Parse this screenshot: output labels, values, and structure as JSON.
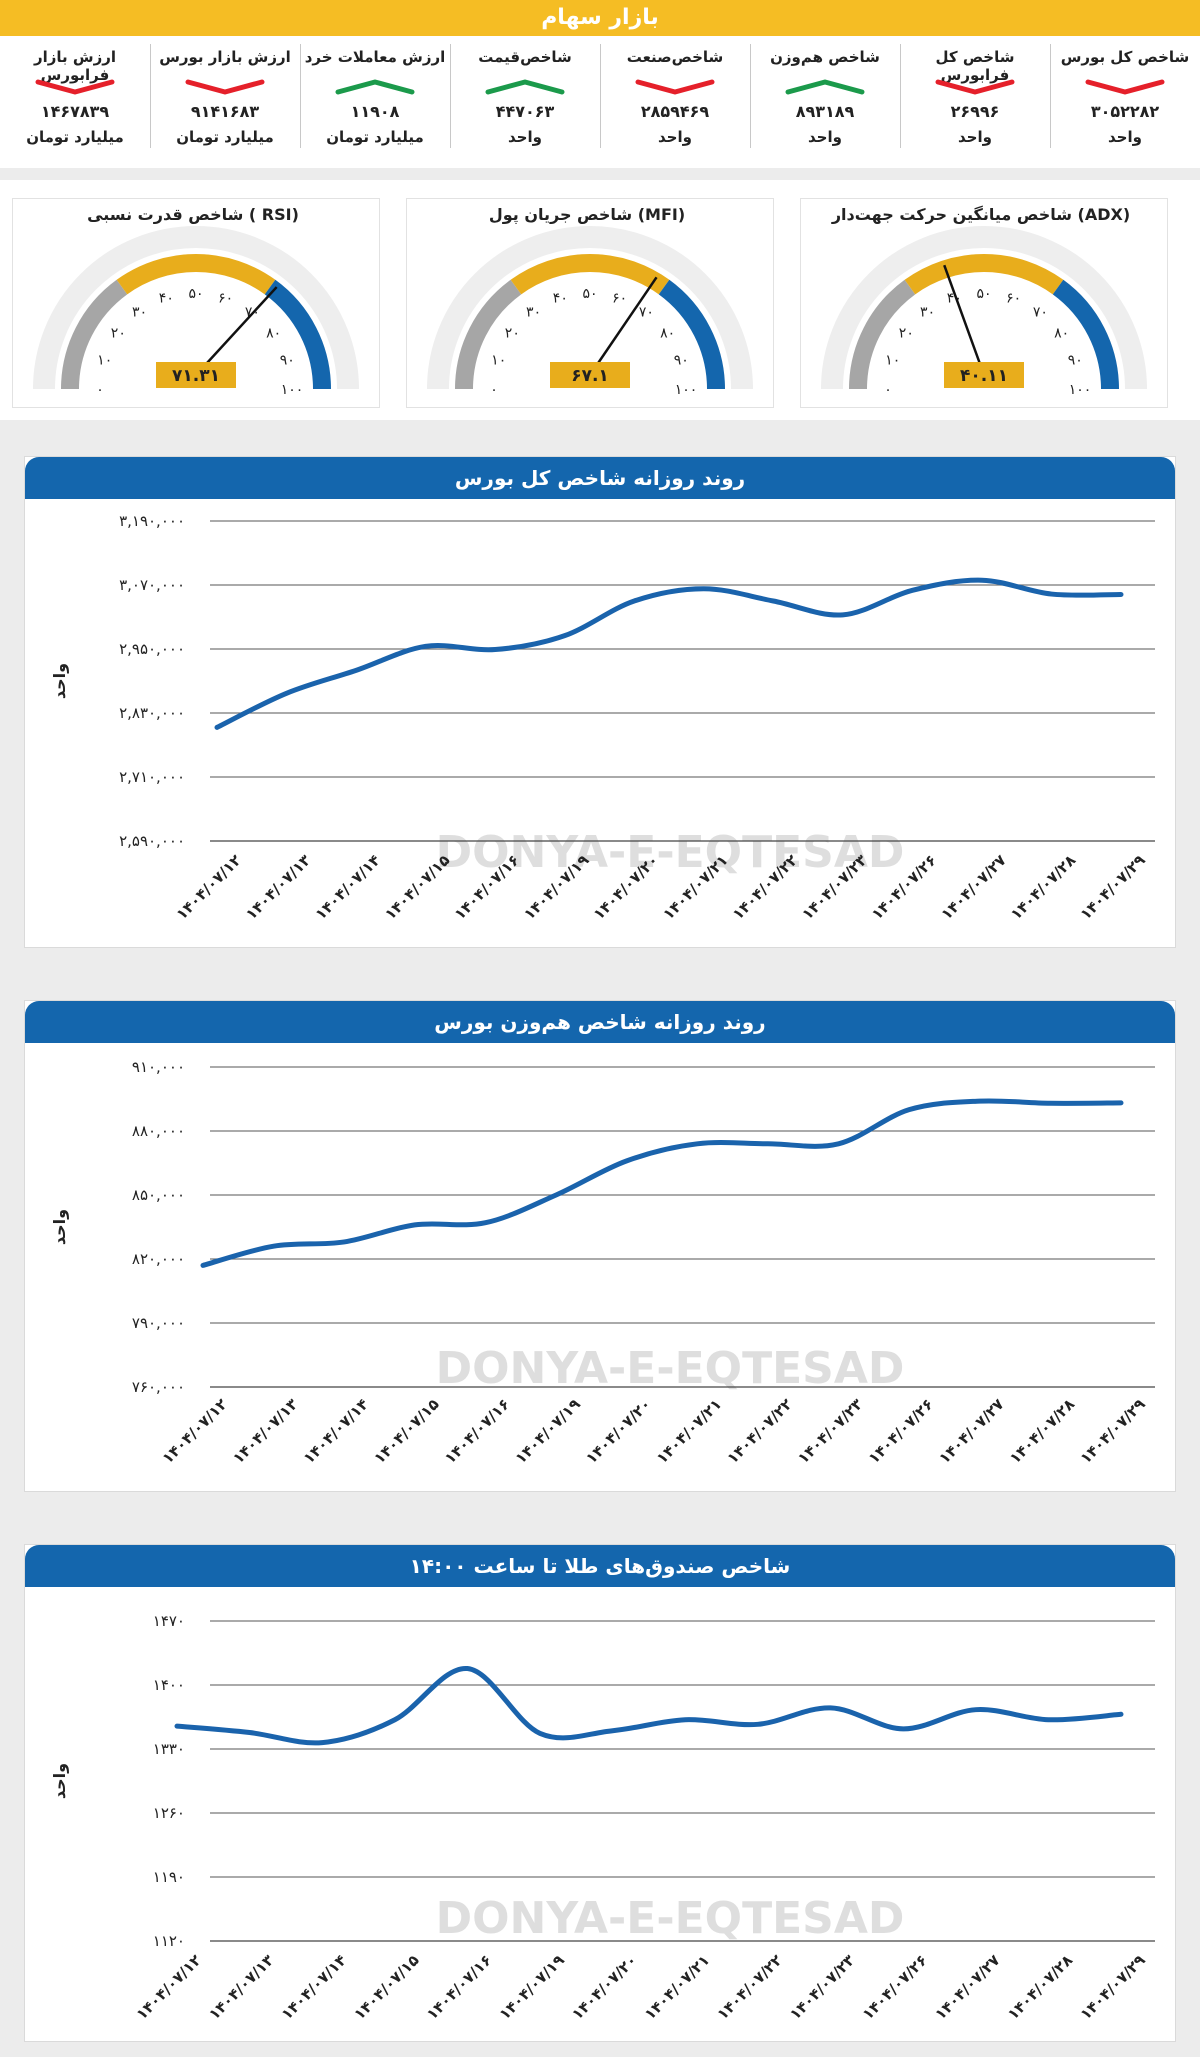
{
  "header": {
    "title": "بازار سهام"
  },
  "indicators": [
    {
      "title": "شاخص کل بورس",
      "value": "۳۰۵۲۲۸۲",
      "unit": "واحد",
      "trend": "down"
    },
    {
      "title": "شاخص کل فرابورس",
      "value": "۲۶۹۹۶",
      "unit": "واحد",
      "trend": "down"
    },
    {
      "title": "شاخص هم‌وزن",
      "value": "۸۹۳۱۸۹",
      "unit": "واحد",
      "trend": "up"
    },
    {
      "title": "شاخص‌صنعت",
      "value": "۲۸۵۹۴۶۹",
      "unit": "واحد",
      "trend": "down"
    },
    {
      "title": "شاخص‌قیمت",
      "value": "۴۴۷۰۶۳",
      "unit": "واحد",
      "trend": "up"
    },
    {
      "title": "ارزش معاملات خرد",
      "value": "۱۱۹۰۸",
      "unit": "میلیارد تومان",
      "trend": "up"
    },
    {
      "title": "ارزش بازار بورس",
      "value": "۹۱۴۱۶۸۳",
      "unit": "میلیارد تومان",
      "trend": "down"
    },
    {
      "title": "ارزش بازار فرابورس",
      "value": "۱۴۶۷۸۳۹",
      "unit": "میلیارد تومان",
      "trend": "down"
    }
  ],
  "colors": {
    "up": "#1b9a4b",
    "down": "#e5202a",
    "accent": "#f5bd24",
    "blue": "#1466ad",
    "line": "#1a63ac",
    "gaugeGray": "#a6a6a6",
    "gaugeYellow": "#e8ad1c",
    "gaugeBlue": "#1466ad",
    "valueBox": "#e8ad1c"
  },
  "gauges": [
    {
      "title": "شاخص میانگین حرکت جهت‌دار (ADX)",
      "value": 40.11,
      "label": "۴۰.۱۱",
      "ticks": [
        "۰",
        "۱۰",
        "۲۰",
        "۳۰",
        "۴۰",
        "۵۰",
        "۶۰",
        "۷۰",
        "۸۰",
        "۹۰",
        "۱۰۰"
      ]
    },
    {
      "title": "شاخص جریان پول (MFI)",
      "value": 67.1,
      "label": "۶۷.۱",
      "ticks": [
        "۰",
        "۱۰",
        "۲۰",
        "۳۰",
        "۴۰",
        "۵۰",
        "۶۰",
        "۷۰",
        "۸۰",
        "۹۰",
        "۱۰۰"
      ]
    },
    {
      "title": "شاخص قدرت نسبی ( RSI)",
      "value": 71.31,
      "label": "۷۱.۳۱",
      "ticks": [
        "۰",
        "۱۰",
        "۲۰",
        "۳۰",
        "۴۰",
        "۵۰",
        "۶۰",
        "۷۰",
        "۸۰",
        "۹۰",
        "۱۰۰"
      ]
    }
  ],
  "watermark": {
    "text": "DONYA-E-EQTESAD"
  },
  "chart_data": [
    {
      "type": "line",
      "title": "روند روزانه شاخص کل بورس",
      "ylabel": "واحد",
      "ylim": [
        2590000,
        3190000
      ],
      "yticks": [
        2590000,
        2710000,
        2830000,
        2950000,
        3070000,
        3190000
      ],
      "ytick_labels": [
        "۲,۵۹۰,۰۰۰",
        "۲,۷۱۰,۰۰۰",
        "۲,۸۳۰,۰۰۰",
        "۲,۹۵۰,۰۰۰",
        "۳,۰۷۰,۰۰۰",
        "۳,۱۹۰,۰۰۰"
      ],
      "categories": [
        "۱۴۰۴/۰۷/۱۲",
        "۱۴۰۴/۰۷/۱۳",
        "۱۴۰۴/۰۷/۱۴",
        "۱۴۰۴/۰۷/۱۵",
        "۱۴۰۴/۰۷/۱۶",
        "۱۴۰۴/۰۷/۱۹",
        "۱۴۰۴/۰۷/۲۰",
        "۱۴۰۴/۰۷/۲۱",
        "۱۴۰۴/۰۷/۲۲",
        "۱۴۰۴/۰۷/۲۳",
        "۱۴۰۴/۰۷/۲۶",
        "۱۴۰۴/۰۷/۲۷",
        "۱۴۰۴/۰۷/۲۸",
        "۱۴۰۴/۰۷/۲۹"
      ],
      "values": [
        2803000,
        2867000,
        2910000,
        2955000,
        2949000,
        2975000,
        3040000,
        3063000,
        3040000,
        3014000,
        3060000,
        3079000,
        3053000,
        3052282
      ]
    },
    {
      "type": "line",
      "title": "روند روزانه شاخص هم‌وزن بورس",
      "ylabel": "واحد",
      "ylim": [
        760000,
        910000
      ],
      "yticks": [
        760000,
        790000,
        820000,
        850000,
        880000,
        910000
      ],
      "ytick_labels": [
        "۷۶۰,۰۰۰",
        "۷۹۰,۰۰۰",
        "۸۲۰,۰۰۰",
        "۸۵۰,۰۰۰",
        "۸۸۰,۰۰۰",
        "۹۱۰,۰۰۰"
      ],
      "categories": [
        "۱۴۰۴/۰۷/۱۲",
        "۱۴۰۴/۰۷/۱۳",
        "۱۴۰۴/۰۷/۱۴",
        "۱۴۰۴/۰۷/۱۵",
        "۱۴۰۴/۰۷/۱۶",
        "۱۴۰۴/۰۷/۱۹",
        "۱۴۰۴/۰۷/۲۰",
        "۱۴۰۴/۰۷/۲۱",
        "۱۴۰۴/۰۷/۲۲",
        "۱۴۰۴/۰۷/۲۳",
        "۱۴۰۴/۰۷/۲۶",
        "۱۴۰۴/۰۷/۲۷",
        "۱۴۰۴/۰۷/۲۸",
        "۱۴۰۴/۰۷/۲۹"
      ],
      "values": [
        817000,
        826000,
        828000,
        836000,
        837000,
        850000,
        866000,
        874000,
        874000,
        874000,
        890000,
        894000,
        893000,
        893189
      ]
    },
    {
      "type": "line",
      "title": "شاخص صندوق‌های طلا تا ساعت ۱۴:۰۰",
      "ylabel": "واحد",
      "ylim": [
        1120,
        1470
      ],
      "yticks": [
        1120,
        1190,
        1260,
        1330,
        1400,
        1470
      ],
      "ytick_labels": [
        "۱۱۲۰",
        "۱۱۹۰",
        "۱۲۶۰",
        "۱۳۳۰",
        "۱۴۰۰",
        "۱۴۷۰"
      ],
      "categories": [
        "۱۴۰۴/۰۷/۱۲",
        "۱۴۰۴/۰۷/۱۳",
        "۱۴۰۴/۰۷/۱۴",
        "۱۴۰۴/۰۷/۱۵",
        "۱۴۰۴/۰۷/۱۶",
        "۱۴۰۴/۰۷/۱۹",
        "۱۴۰۴/۰۷/۲۰",
        "۱۴۰۴/۰۷/۲۱",
        "۱۴۰۴/۰۷/۲۲",
        "۱۴۰۴/۰۷/۲۳",
        "۱۴۰۴/۰۷/۲۶",
        "۱۴۰۴/۰۷/۲۷",
        "۱۴۰۴/۰۷/۲۸",
        "۱۴۰۴/۰۷/۲۹"
      ],
      "values": [
        1355,
        1348,
        1337,
        1362,
        1418,
        1347,
        1350,
        1362,
        1357,
        1375,
        1352,
        1373,
        1362,
        1368
      ]
    }
  ]
}
